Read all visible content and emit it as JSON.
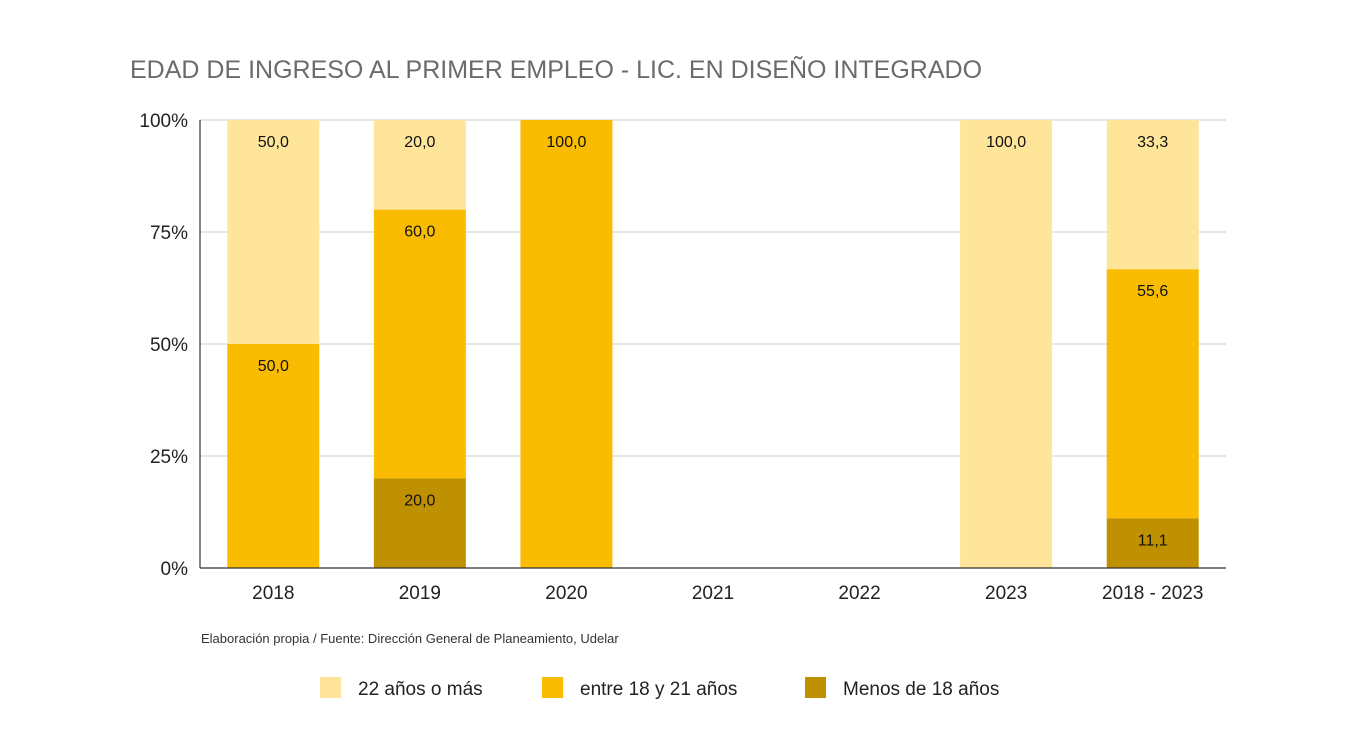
{
  "chart_data": {
    "type": "bar",
    "stacked": true,
    "title": "EDAD DE INGRESO AL PRIMER EMPLEO - LIC. EN DISEÑO INTEGRADO",
    "categories": [
      "2018",
      "2019",
      "2020",
      "2021",
      "2022",
      "2023",
      "2018 - 2023"
    ],
    "series": [
      {
        "name": "Menos de 18 años",
        "color": "#bf9000",
        "values": [
          0,
          20.0,
          0,
          0,
          0,
          0,
          11.1
        ],
        "labels": [
          "",
          "20,0",
          "",
          "",
          "",
          "",
          "11,1"
        ]
      },
      {
        "name": "entre 18 y 21 años",
        "color": "#f9bc00",
        "values": [
          50.0,
          60.0,
          100.0,
          0,
          0,
          0,
          55.6
        ],
        "labels": [
          "50,0",
          "60,0",
          "100,0",
          "",
          "",
          "",
          "55,6"
        ]
      },
      {
        "name": "22 años o más",
        "color": "#ffe599",
        "values": [
          50.0,
          20.0,
          0,
          0,
          0,
          100.0,
          33.3
        ],
        "labels": [
          "50,0",
          "20,0",
          "",
          "",
          "",
          "100,0",
          "33,3"
        ]
      }
    ],
    "legend_order": [
      2,
      1,
      0
    ],
    "ylim": [
      0,
      100
    ],
    "yticks": [
      0,
      25,
      50,
      75,
      100
    ],
    "ytick_labels": [
      "0%",
      "25%",
      "50%",
      "75%",
      "100%"
    ],
    "grid": true,
    "legend_position": "bottom",
    "source": "Elaboración propia / Fuente: Dirección General de Planeamiento, Udelar"
  }
}
